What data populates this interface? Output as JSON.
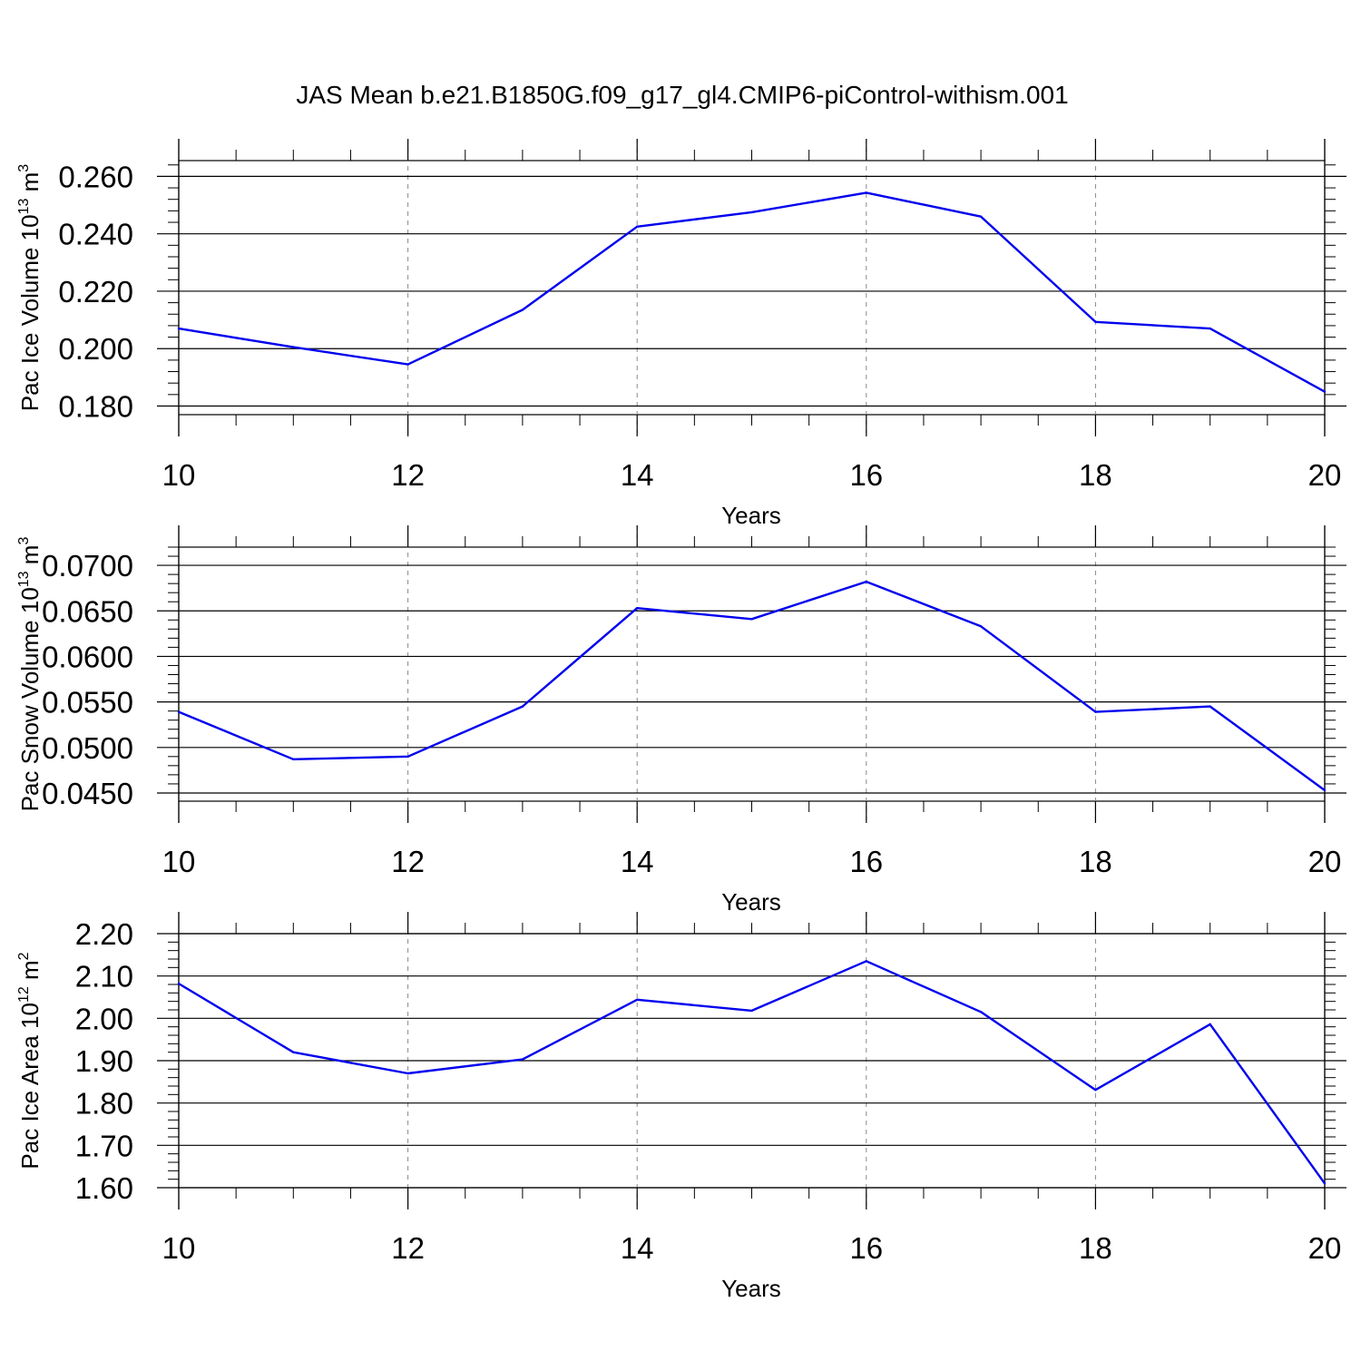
{
  "figure": {
    "title": "JAS Mean b.e21.B1850G.f09_g17_gl4.CMIP6-piControl-withism.001"
  },
  "chart_data": [
    {
      "type": "line",
      "ylabel_text": "Pac Ice Volume 10",
      "ylabel_exp": "13",
      "ylabel_unit": "m",
      "ylabel_unit_exp": "3",
      "xlabel": "Years",
      "xlim": [
        10,
        20
      ],
      "ylim": [
        0.177,
        0.2655
      ],
      "x_ticks": [
        10,
        12,
        14,
        16,
        18,
        20
      ],
      "x_tick_labels": [
        "10",
        "12",
        "14",
        "16",
        "18",
        "20"
      ],
      "y_ticks": [
        0.18,
        0.2,
        0.22,
        0.24,
        0.26
      ],
      "y_tick_labels": [
        "0.180",
        "0.200",
        "0.220",
        "0.240",
        "0.260"
      ],
      "y_minor_step": 0.004,
      "grid_x": "dashed",
      "line_color": "#0000ee",
      "x": [
        10,
        11,
        12,
        13,
        14,
        15,
        16,
        17,
        18,
        19,
        20
      ],
      "y": [
        0.207,
        0.2005,
        0.1945,
        0.2135,
        0.2425,
        0.2475,
        0.2543,
        0.246,
        0.2093,
        0.207,
        0.185
      ]
    },
    {
      "type": "line",
      "ylabel_text": "Pac Snow Volume 10",
      "ylabel_exp": "13",
      "ylabel_unit": "m",
      "ylabel_unit_exp": "3",
      "xlabel": "Years",
      "xlim": [
        10,
        20
      ],
      "ylim": [
        0.0441,
        0.072
      ],
      "x_ticks": [
        10,
        12,
        14,
        16,
        18,
        20
      ],
      "x_tick_labels": [
        "10",
        "12",
        "14",
        "16",
        "18",
        "20"
      ],
      "y_ticks": [
        0.045,
        0.05,
        0.055,
        0.06,
        0.065,
        0.07
      ],
      "y_tick_labels": [
        "0.0450",
        "0.0500",
        "0.0550",
        "0.0600",
        "0.0650",
        "0.0700"
      ],
      "y_minor_step": 0.001,
      "grid_x": "dashed",
      "line_color": "#0000ee",
      "x": [
        10,
        11,
        12,
        13,
        14,
        15,
        16,
        17,
        18,
        19,
        20
      ],
      "y": [
        0.0539,
        0.0487,
        0.049,
        0.0545,
        0.0653,
        0.0641,
        0.0682,
        0.0633,
        0.0539,
        0.0545,
        0.0453
      ]
    },
    {
      "type": "line",
      "ylabel_text": "Pac Ice Area 10",
      "ylabel_exp": "12",
      "ylabel_unit": "m",
      "ylabel_unit_exp": "2",
      "xlabel": "Years",
      "xlim": [
        10,
        20
      ],
      "ylim": [
        1.6,
        2.2
      ],
      "x_ticks": [
        10,
        12,
        14,
        16,
        18,
        20
      ],
      "x_tick_labels": [
        "10",
        "12",
        "14",
        "16",
        "18",
        "20"
      ],
      "y_ticks": [
        1.6,
        1.7,
        1.8,
        1.9,
        2.0,
        2.1,
        2.2
      ],
      "y_tick_labels": [
        "1.60",
        "1.70",
        "1.80",
        "1.90",
        "2.00",
        "2.10",
        "2.20"
      ],
      "y_minor_step": 0.02,
      "grid_x": "dashed",
      "line_color": "#0000ee",
      "x": [
        10,
        11,
        12,
        13,
        14,
        15,
        16,
        17,
        18,
        19,
        20
      ],
      "y": [
        2.082,
        1.92,
        1.87,
        1.903,
        2.044,
        2.018,
        2.135,
        2.015,
        1.831,
        1.986,
        1.61
      ]
    }
  ]
}
